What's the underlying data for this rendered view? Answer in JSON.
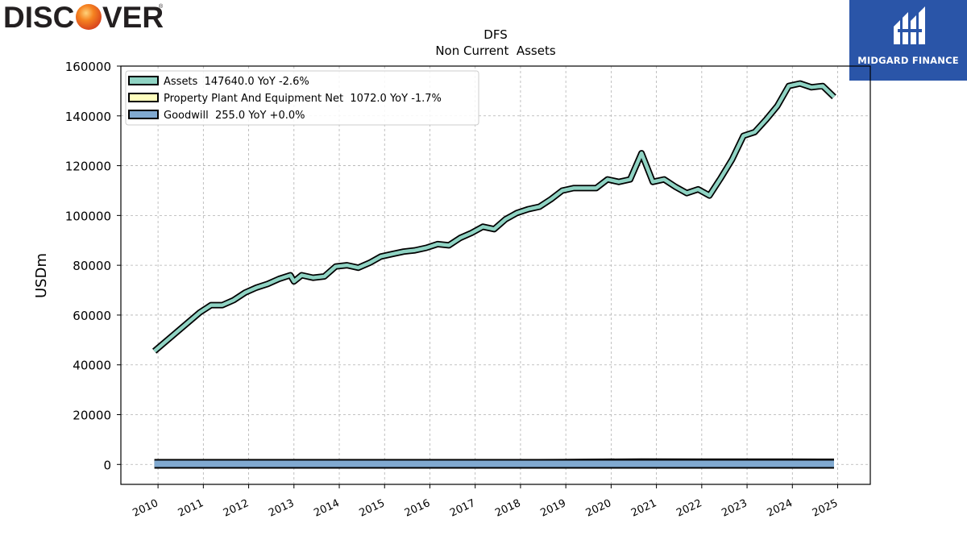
{
  "brand": {
    "discover_text_left": "DISC",
    "discover_text_right": "VER",
    "discover_registered": "®",
    "midgard_name": "MIDGARD FINANCE",
    "midgard_color": "#2a55a8",
    "discover_orange": "#f58220"
  },
  "chart_data": {
    "type": "area",
    "title": "DFS",
    "subtitle": "Non Current  Assets",
    "ylabel": "USDm",
    "xlabel": "",
    "ylim": [
      -8000,
      160000
    ],
    "yticks": [
      0,
      20000,
      40000,
      60000,
      80000,
      100000,
      120000,
      140000,
      160000
    ],
    "xticks": [
      "2010",
      "2011",
      "2012",
      "2013",
      "2014",
      "2015",
      "2016",
      "2017",
      "2018",
      "2019",
      "2020",
      "2021",
      "2022",
      "2023",
      "2024",
      "2025"
    ],
    "grid": true,
    "legend_position": "top-left",
    "series": [
      {
        "name": "Assets  147640.0 YoY -2.6%",
        "color": "#8fd3c3",
        "points": [
          [
            2009.92,
            45500
          ],
          [
            2010.92,
            61000
          ],
          [
            2011.17,
            64000
          ],
          [
            2011.42,
            64000
          ],
          [
            2011.67,
            66000
          ],
          [
            2011.92,
            69000
          ],
          [
            2012.17,
            71000
          ],
          [
            2012.42,
            72500
          ],
          [
            2012.67,
            74500
          ],
          [
            2012.92,
            76000
          ],
          [
            2013.0,
            73500
          ],
          [
            2013.17,
            76000
          ],
          [
            2013.42,
            75000
          ],
          [
            2013.67,
            75500
          ],
          [
            2013.92,
            79500
          ],
          [
            2014.17,
            80000
          ],
          [
            2014.42,
            79000
          ],
          [
            2014.67,
            81000
          ],
          [
            2014.92,
            83500
          ],
          [
            2015.17,
            84500
          ],
          [
            2015.42,
            85500
          ],
          [
            2015.67,
            86000
          ],
          [
            2015.92,
            87000
          ],
          [
            2016.17,
            88500
          ],
          [
            2016.42,
            88000
          ],
          [
            2016.67,
            91000
          ],
          [
            2016.92,
            93000
          ],
          [
            2017.17,
            95500
          ],
          [
            2017.42,
            94500
          ],
          [
            2017.67,
            98500
          ],
          [
            2017.92,
            101000
          ],
          [
            2018.17,
            102500
          ],
          [
            2018.42,
            103500
          ],
          [
            2018.67,
            106500
          ],
          [
            2018.92,
            110000
          ],
          [
            2019.17,
            111000
          ],
          [
            2019.42,
            111000
          ],
          [
            2019.67,
            111000
          ],
          [
            2019.92,
            114500
          ],
          [
            2020.17,
            113500
          ],
          [
            2020.42,
            114500
          ],
          [
            2020.67,
            125000
          ],
          [
            2020.92,
            113500
          ],
          [
            2021.17,
            114500
          ],
          [
            2021.42,
            111500
          ],
          [
            2021.67,
            109000
          ],
          [
            2021.92,
            110500
          ],
          [
            2022.17,
            108000
          ],
          [
            2022.42,
            115000
          ],
          [
            2022.67,
            122500
          ],
          [
            2022.92,
            132000
          ],
          [
            2023.17,
            133500
          ],
          [
            2023.42,
            138500
          ],
          [
            2023.67,
            144000
          ],
          [
            2023.92,
            152000
          ],
          [
            2024.17,
            153000
          ],
          [
            2024.42,
            151500
          ],
          [
            2024.67,
            152000
          ],
          [
            2024.92,
            147640
          ]
        ]
      },
      {
        "name": "Property Plant And Equipment Net  1072.0 YoY -1.7%",
        "color": "#ffffbf",
        "points": [
          [
            2009.92,
            600
          ],
          [
            2010.92,
            550
          ],
          [
            2012.92,
            600
          ],
          [
            2014.92,
            700
          ],
          [
            2016.92,
            800
          ],
          [
            2018.92,
            950
          ],
          [
            2020.67,
            1150
          ],
          [
            2021.92,
            1100
          ],
          [
            2023.92,
            1090
          ],
          [
            2024.92,
            1072
          ]
        ]
      },
      {
        "name": "Goodwill  255.0 YoY +0.0%",
        "color": "#80a9d0",
        "points": [
          [
            2009.92,
            255
          ],
          [
            2010.92,
            255
          ],
          [
            2012.92,
            255
          ],
          [
            2014.92,
            255
          ],
          [
            2016.92,
            255
          ],
          [
            2018.92,
            255
          ],
          [
            2020.92,
            255
          ],
          [
            2022.92,
            255
          ],
          [
            2024.92,
            255
          ]
        ]
      }
    ]
  }
}
